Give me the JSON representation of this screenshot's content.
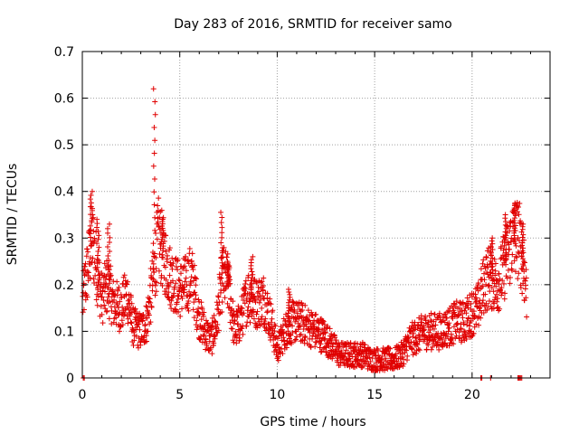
{
  "chart_data": {
    "type": "scatter",
    "title": "Day 283 of 2016, SRMTID for receiver samo",
    "xlabel": "GPS time / hours",
    "ylabel": "SRMTID / TECUs",
    "xlim": [
      0,
      24
    ],
    "ylim": [
      0,
      0.7
    ],
    "xticks": [
      0,
      5,
      10,
      15,
      20
    ],
    "xtick_labels": [
      "0",
      "5",
      "10",
      "15",
      "20"
    ],
    "yticks": [
      0,
      0.1,
      0.2,
      0.3,
      0.4,
      0.5,
      0.6,
      0.7
    ],
    "ytick_labels": [
      "0",
      "0.1",
      "0.2",
      "0.3",
      "0.4",
      "0.5",
      "0.6",
      "0.7"
    ],
    "grid": true,
    "marker": "+",
    "series_color": "#e00000",
    "profile": {
      "x": [
        0.0,
        0.1,
        0.3,
        0.5,
        0.8,
        1.0,
        1.3,
        1.6,
        2.0,
        2.3,
        2.6,
        3.0,
        3.3,
        3.6,
        3.9,
        4.2,
        4.5,
        4.8,
        5.0,
        5.3,
        5.6,
        6.0,
        6.3,
        6.6,
        6.9,
        7.2,
        7.5,
        7.8,
        8.1,
        8.5,
        8.9,
        9.3,
        9.7,
        10.0,
        10.4,
        10.8,
        11.2,
        11.6,
        12.0,
        12.4,
        12.8,
        13.2,
        13.6,
        14.0,
        14.4,
        14.8,
        15.2,
        15.6,
        16.0,
        16.4,
        16.8,
        17.2,
        17.6,
        18.0,
        18.4,
        18.8,
        19.2,
        19.6,
        20.0,
        20.3,
        20.6,
        20.9,
        21.2,
        21.5,
        21.8,
        22.1,
        22.4,
        22.6,
        22.8
      ],
      "y": [
        0.15,
        0.19,
        0.24,
        0.3,
        0.22,
        0.17,
        0.2,
        0.16,
        0.15,
        0.18,
        0.11,
        0.1,
        0.12,
        0.2,
        0.3,
        0.26,
        0.22,
        0.2,
        0.19,
        0.2,
        0.22,
        0.13,
        0.1,
        0.08,
        0.12,
        0.22,
        0.2,
        0.1,
        0.12,
        0.18,
        0.16,
        0.17,
        0.12,
        0.06,
        0.1,
        0.12,
        0.12,
        0.11,
        0.1,
        0.09,
        0.07,
        0.05,
        0.05,
        0.05,
        0.05,
        0.04,
        0.04,
        0.04,
        0.04,
        0.05,
        0.08,
        0.09,
        0.1,
        0.1,
        0.1,
        0.11,
        0.12,
        0.12,
        0.14,
        0.15,
        0.2,
        0.22,
        0.2,
        0.22,
        0.26,
        0.3,
        0.3,
        0.25,
        0.18
      ]
    },
    "peaks": [
      {
        "x": 0.45,
        "y": 0.4
      },
      {
        "x": 0.8,
        "y": 0.34
      },
      {
        "x": 1.35,
        "y": 0.33
      },
      {
        "x": 3.7,
        "y": 0.62
      },
      {
        "x": 4.1,
        "y": 0.34
      },
      {
        "x": 7.15,
        "y": 0.355
      },
      {
        "x": 7.5,
        "y": 0.25
      },
      {
        "x": 8.7,
        "y": 0.26
      },
      {
        "x": 10.6,
        "y": 0.19
      },
      {
        "x": 21.0,
        "y": 0.3
      },
      {
        "x": 21.7,
        "y": 0.35
      },
      {
        "x": 22.2,
        "y": 0.375
      },
      {
        "x": 22.6,
        "y": 0.33
      }
    ],
    "zero_values_x": [
      0.05,
      0.1,
      20.45,
      20.5,
      20.95,
      22.35,
      22.4,
      22.45,
      22.5,
      22.55
    ]
  }
}
